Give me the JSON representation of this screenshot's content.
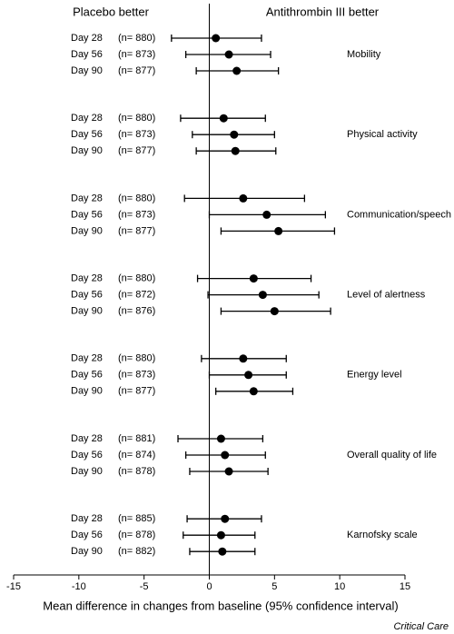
{
  "chart_data": {
    "type": "forest",
    "left_label": "Placebo better",
    "right_label": "Antithrombin III better",
    "xlabel": "Mean difference in changes from baseline (95% confidence interval)",
    "source": "Critical Care",
    "xlim": [
      -15,
      15
    ],
    "xticks": [
      -15,
      -10,
      -5,
      0,
      5,
      10,
      15
    ],
    "color": "#000000",
    "groups": [
      {
        "name": "Mobility",
        "rows": [
          {
            "label": "Day 28",
            "n": "(n= 880)",
            "value": 0.5,
            "lower": -2.9,
            "upper": 4.0
          },
          {
            "label": "Day 56",
            "n": "(n= 873)",
            "value": 1.5,
            "lower": -1.8,
            "upper": 4.7
          },
          {
            "label": "Day 90",
            "n": "(n= 877)",
            "value": 2.1,
            "lower": -1.0,
            "upper": 5.3
          }
        ]
      },
      {
        "name": "Physical activity",
        "rows": [
          {
            "label": "Day 28",
            "n": "(n= 880)",
            "value": 1.1,
            "lower": -2.2,
            "upper": 4.3
          },
          {
            "label": "Day 56",
            "n": "(n= 873)",
            "value": 1.9,
            "lower": -1.3,
            "upper": 5.0
          },
          {
            "label": "Day 90",
            "n": "(n= 877)",
            "value": 2.0,
            "lower": -1.0,
            "upper": 5.1
          }
        ]
      },
      {
        "name": "Communication/speech",
        "rows": [
          {
            "label": "Day 28",
            "n": "(n= 880)",
            "value": 2.6,
            "lower": -1.9,
            "upper": 7.3
          },
          {
            "label": "Day 56",
            "n": "(n= 873)",
            "value": 4.4,
            "lower": 0.0,
            "upper": 8.9
          },
          {
            "label": "Day 90",
            "n": "(n= 877)",
            "value": 5.3,
            "lower": 0.9,
            "upper": 9.6
          }
        ]
      },
      {
        "name": "Level of alertness",
        "rows": [
          {
            "label": "Day 28",
            "n": "(n= 880)",
            "value": 3.4,
            "lower": -0.9,
            "upper": 7.8
          },
          {
            "label": "Day 56",
            "n": "(n= 872)",
            "value": 4.1,
            "lower": -0.1,
            "upper": 8.4
          },
          {
            "label": "Day 90",
            "n": "(n= 876)",
            "value": 5.0,
            "lower": 0.9,
            "upper": 9.3
          }
        ]
      },
      {
        "name": "Energy level",
        "rows": [
          {
            "label": "Day 28",
            "n": "(n= 880)",
            "value": 2.6,
            "lower": -0.6,
            "upper": 5.9
          },
          {
            "label": "Day 56",
            "n": "(n= 873)",
            "value": 3.0,
            "lower": 0.0,
            "upper": 5.9
          },
          {
            "label": "Day 90",
            "n": "(n= 877)",
            "value": 3.4,
            "lower": 0.5,
            "upper": 6.4
          }
        ]
      },
      {
        "name": "Overall quality of life",
        "rows": [
          {
            "label": "Day 28",
            "n": "(n= 881)",
            "value": 0.9,
            "lower": -2.4,
            "upper": 4.1
          },
          {
            "label": "Day 56",
            "n": "(n= 874)",
            "value": 1.2,
            "lower": -1.8,
            "upper": 4.3
          },
          {
            "label": "Day 90",
            "n": "(n= 878)",
            "value": 1.5,
            "lower": -1.5,
            "upper": 4.5
          }
        ]
      },
      {
        "name": "Karnofsky scale",
        "rows": [
          {
            "label": "Day 28",
            "n": "(n= 885)",
            "value": 1.2,
            "lower": -1.7,
            "upper": 4.0
          },
          {
            "label": "Day 56",
            "n": "(n= 878)",
            "value": 0.9,
            "lower": -2.0,
            "upper": 3.5
          },
          {
            "label": "Day 90",
            "n": "(n= 882)",
            "value": 1.0,
            "lower": -1.5,
            "upper": 3.5
          }
        ]
      }
    ]
  }
}
